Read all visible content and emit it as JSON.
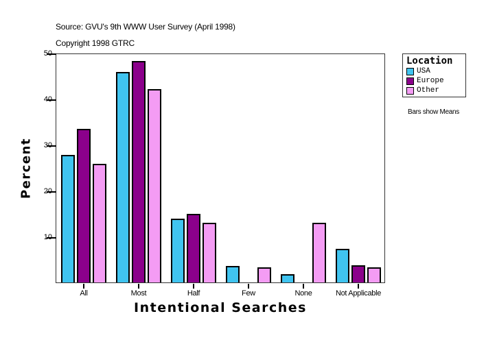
{
  "header": {
    "source": "Source: GVU's 9th WWW User Survey (April 1998)",
    "copyright": "Copyright 1998 GTRC"
  },
  "legend": {
    "title": "Location",
    "items": [
      {
        "label": "USA",
        "color": "#40C4F0"
      },
      {
        "label": "Europe",
        "color": "#8B008B"
      },
      {
        "label": "Other",
        "color": "#F49CF4"
      }
    ]
  },
  "note": "Bars show Means",
  "chart_data": {
    "type": "bar",
    "title": "Source: GVU's 9th WWW User Survey (April 1998)",
    "subtitle": "Copyright 1998 GTRC",
    "xlabel": "Intentional Searches",
    "ylabel": "Percent",
    "categories": [
      "All",
      "Most",
      "Half",
      "Few",
      "None",
      "Not Applicable"
    ],
    "series": [
      {
        "name": "USA",
        "color": "#40C4F0",
        "values": [
          27.8,
          45.8,
          13.9,
          3.6,
          1.8,
          7.3
        ]
      },
      {
        "name": "Europe",
        "color": "#8B008B",
        "values": [
          33.4,
          48.2,
          14.9,
          0,
          0,
          3.7
        ]
      },
      {
        "name": "Other",
        "color": "#F49CF4",
        "values": [
          25.8,
          42.1,
          13.0,
          3.3,
          13.0,
          3.3
        ]
      }
    ],
    "ylim": [
      0,
      50
    ],
    "yticks": [
      10,
      20,
      30,
      40,
      50
    ],
    "grid": false,
    "legend_title": "Location",
    "legend_position": "right",
    "annotation": "Bars show Means"
  }
}
